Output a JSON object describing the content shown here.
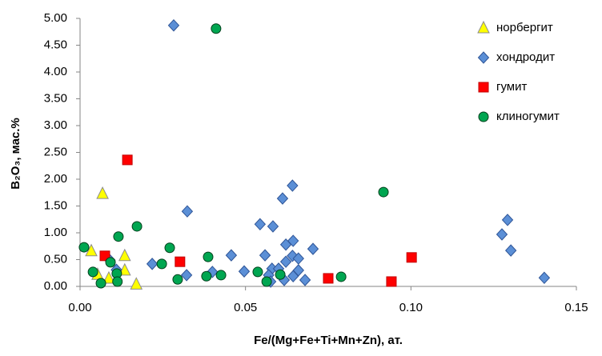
{
  "chart_data": {
    "type": "scatter",
    "x_label": "Fe/(Mg+Fe+Ti+Mn+Zn), ат.",
    "y_label": "B₂O₃, мас.%",
    "xlim": [
      0,
      0.15
    ],
    "ylim": [
      0,
      5
    ],
    "xticks": [
      {
        "value": 0,
        "label": "0.00"
      },
      {
        "value": 0.05,
        "label": "0.05"
      },
      {
        "value": 0.1,
        "label": "0.10"
      },
      {
        "value": 0.15,
        "label": "0.15"
      }
    ],
    "yticks": [
      {
        "value": 0,
        "label": "0.00"
      },
      {
        "value": 0.5,
        "label": "0.50"
      },
      {
        "value": 1,
        "label": "1.00"
      },
      {
        "value": 1.5,
        "label": "1.50"
      },
      {
        "value": 2,
        "label": "2.00"
      },
      {
        "value": 2.5,
        "label": "2.50"
      },
      {
        "value": 3,
        "label": "3.00"
      },
      {
        "value": 3.5,
        "label": "3.50"
      },
      {
        "value": 4,
        "label": "4.00"
      },
      {
        "value": 4.5,
        "label": "4.50"
      },
      {
        "value": 5,
        "label": "5.00"
      }
    ],
    "grid": false,
    "legend": "upper right",
    "series": [
      {
        "name": "норбергит",
        "color": "#ffff00",
        "stroke": "#8c8c8c",
        "marker": "triangle",
        "x": [
          0.0068,
          0.0034,
          0.0053,
          0.0135,
          0.0135,
          0.017,
          0.0087
        ],
        "values": [
          1.73,
          0.66,
          0.22,
          0.57,
          0.3,
          0.04,
          0.15
        ]
      },
      {
        "name": "хондродит",
        "color": "#5b8fd6",
        "stroke": "#2f5597",
        "marker": "diamond",
        "x": [
          0.0283,
          0.0324,
          0.0218,
          0.0322,
          0.04,
          0.0457,
          0.0496,
          0.0544,
          0.0559,
          0.0583,
          0.0612,
          0.0642,
          0.0622,
          0.0644,
          0.0622,
          0.0642,
          0.066,
          0.0704,
          0.058,
          0.06,
          0.057,
          0.0576,
          0.066,
          0.068,
          0.0644,
          0.0617,
          0.1275,
          0.1292,
          0.1302,
          0.1403,
          0.009,
          0.011
        ],
        "values": [
          4.87,
          1.4,
          0.42,
          0.21,
          0.27,
          0.58,
          0.28,
          1.16,
          0.58,
          1.12,
          1.64,
          1.88,
          0.78,
          0.85,
          0.46,
          0.57,
          0.52,
          0.7,
          0.33,
          0.33,
          0.21,
          0.09,
          0.3,
          0.12,
          0.19,
          0.12,
          0.97,
          1.24,
          0.67,
          0.16,
          0.49,
          0.31
        ]
      },
      {
        "name": "гумит",
        "color": "#ff0000",
        "stroke": "#c00000",
        "marker": "square",
        "x": [
          0.0143,
          0.0075,
          0.0302,
          0.075,
          0.0941,
          0.1002
        ],
        "values": [
          2.36,
          0.57,
          0.46,
          0.15,
          0.09,
          0.54
        ]
      },
      {
        "name": "клиногумит",
        "color": "#00a651",
        "stroke": "#00401c",
        "marker": "circle",
        "x": [
          0.0411,
          0.0917,
          0.0012,
          0.0039,
          0.0063,
          0.0092,
          0.0111,
          0.0113,
          0.0116,
          0.0172,
          0.0247,
          0.0271,
          0.0295,
          0.0387,
          0.0382,
          0.0426,
          0.0537,
          0.0564,
          0.0605,
          0.0789
        ],
        "values": [
          4.81,
          1.76,
          0.73,
          0.27,
          0.06,
          0.45,
          0.24,
          0.09,
          0.93,
          1.12,
          0.42,
          0.72,
          0.13,
          0.55,
          0.19,
          0.21,
          0.27,
          0.09,
          0.22,
          0.18
        ]
      }
    ]
  }
}
